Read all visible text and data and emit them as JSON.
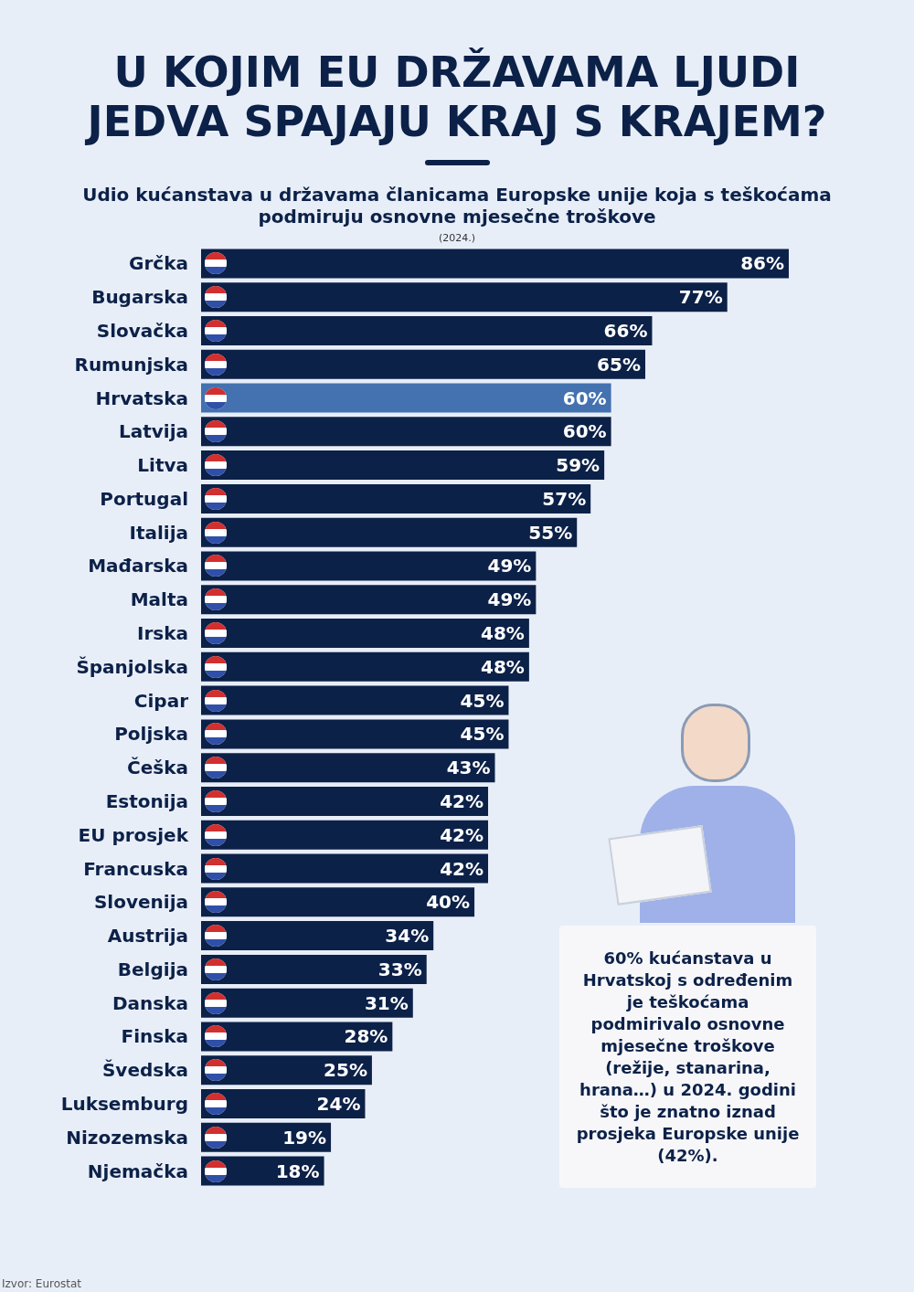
{
  "chart_data": {
    "type": "bar",
    "orientation": "horizontal",
    "title": "U KOJIM EU DRŽAVAMA LJUDI JEDVA SPAJAJU KRAJ S KRAJEM?",
    "subtitle": "Udio kućanstava u državama članicama Europske unije koja s teškoćama podmiruju osnovne mjesečne troškove",
    "categories": [
      "Grčka",
      "Bugarska",
      "Slovačka",
      "Rumunjska",
      "Hrvatska",
      "Latvija",
      "Litva",
      "Portugal",
      "Italija",
      "Mađarska",
      "Malta",
      "Irska",
      "Španjolska",
      "Cipar",
      "Poljska",
      "Češka",
      "Estonija",
      "EU prosjek",
      "Francuska",
      "Slovenija",
      "Austrija",
      "Belgija",
      "Danska",
      "Finska",
      "Švedska",
      "Luksemburg",
      "Nizozemska",
      "Njemačka"
    ],
    "values": [
      86,
      77,
      66,
      65,
      60,
      60,
      59,
      57,
      55,
      49,
      49,
      48,
      48,
      45,
      45,
      43,
      42,
      42,
      42,
      40,
      34,
      33,
      31,
      28,
      25,
      24,
      19,
      18
    ],
    "value_labels": [
      "86%",
      "77%",
      "66%",
      "65%",
      "60%",
      "60%",
      "59%",
      "57%",
      "55%",
      "49%",
      "49%",
      "48%",
      "48%",
      "45%",
      "45%",
      "43%",
      "42%",
      "42%",
      "42%",
      "40%",
      "34%",
      "33%",
      "31%",
      "28%",
      "25%",
      "24%",
      "19%",
      "18%"
    ],
    "colors": [
      "#0c2148",
      "#0c2148",
      "#0c2148",
      "#0c2148",
      "#4472b0",
      "#0c2148",
      "#0c2148",
      "#0c2148",
      "#0c2148",
      "#0c2148",
      "#0c2148",
      "#0c2148",
      "#0c2148",
      "#0c2148",
      "#0c2148",
      "#0c2148",
      "#0c2148",
      "#0c2148",
      "#0c2148",
      "#0c2148",
      "#0c2148",
      "#0c2148",
      "#0c2148",
      "#0c2148",
      "#0c2148",
      "#0c2148",
      "#0c2148",
      "#0c2148"
    ],
    "annotations": [
      "(2024.)",
      "60% kućanstava u Hrvatskoj s određenim je teškoćama podmirivalo osnovne mjesečne troškove (režije, stanarina, hrana…) u 2024. godini što je znatno iznad prosjeka Europske unije (42%).",
      "Izvor: Eurostat"
    ]
  }
}
